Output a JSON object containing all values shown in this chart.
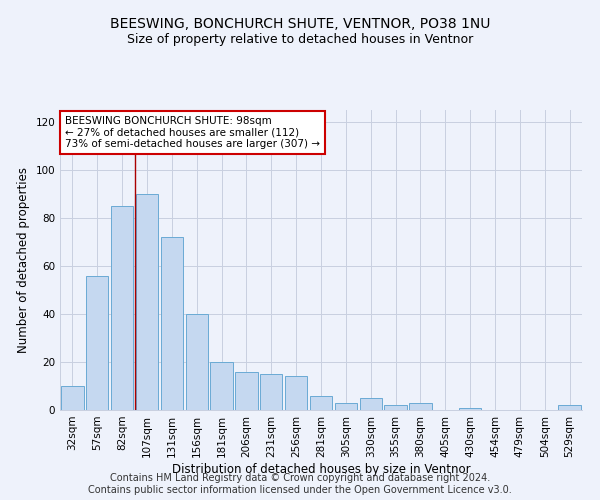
{
  "title_line1": "BEESWING, BONCHURCH SHUTE, VENTNOR, PO38 1NU",
  "title_line2": "Size of property relative to detached houses in Ventnor",
  "xlabel": "Distribution of detached houses by size in Ventnor",
  "ylabel": "Number of detached properties",
  "categories": [
    "32sqm",
    "57sqm",
    "82sqm",
    "107sqm",
    "131sqm",
    "156sqm",
    "181sqm",
    "206sqm",
    "231sqm",
    "256sqm",
    "281sqm",
    "305sqm",
    "330sqm",
    "355sqm",
    "380sqm",
    "405sqm",
    "430sqm",
    "454sqm",
    "479sqm",
    "504sqm",
    "529sqm"
  ],
  "values": [
    10,
    56,
    85,
    90,
    72,
    40,
    20,
    16,
    15,
    14,
    6,
    3,
    5,
    2,
    3,
    0,
    1,
    0,
    0,
    0,
    2
  ],
  "bar_color": "#c5d8f0",
  "bar_edge_color": "#6aaad4",
  "ylim": [
    0,
    125
  ],
  "yticks": [
    0,
    20,
    40,
    60,
    80,
    100,
    120
  ],
  "vline_x_idx": 2.5,
  "vline_color": "#aa0000",
  "annotation_text": "BEESWING BONCHURCH SHUTE: 98sqm\n← 27% of detached houses are smaller (112)\n73% of semi-detached houses are larger (307) →",
  "annotation_box_color": "#ffffff",
  "annotation_box_edge": "#cc0000",
  "footer_line1": "Contains HM Land Registry data © Crown copyright and database right 2024.",
  "footer_line2": "Contains public sector information licensed under the Open Government Licence v3.0.",
  "background_color": "#eef2fb",
  "grid_color": "#c8cfe0",
  "title_fontsize": 10,
  "subtitle_fontsize": 9,
  "label_fontsize": 8.5,
  "tick_fontsize": 7.5,
  "footer_fontsize": 7
}
